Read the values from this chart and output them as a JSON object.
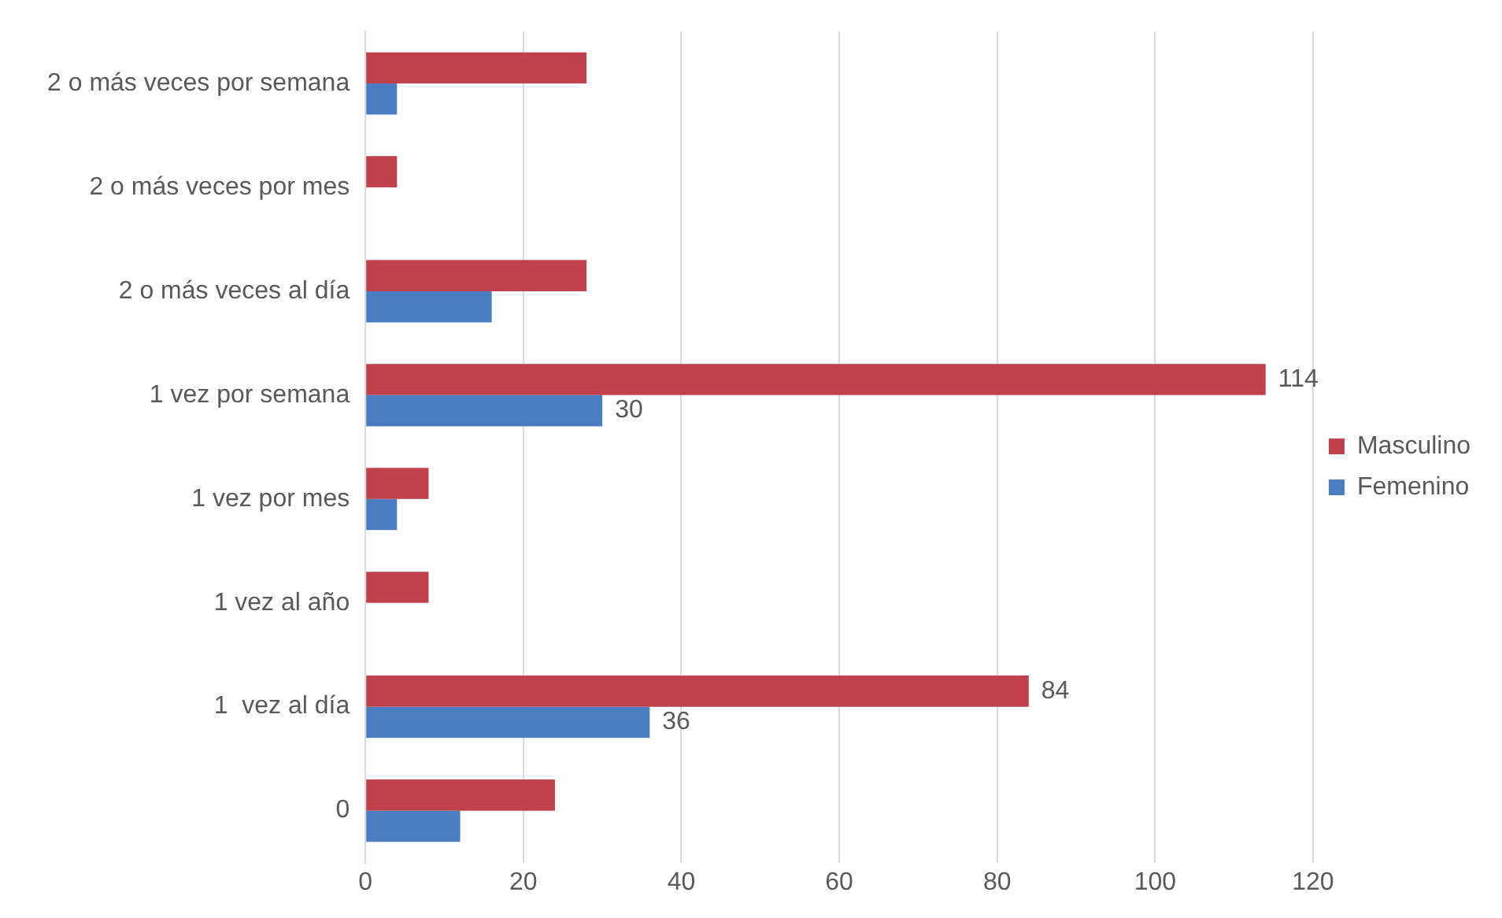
{
  "chart_data": {
    "type": "bar",
    "orientation": "horizontal",
    "categories": [
      "2 o más veces por semana",
      "2 o más veces por mes",
      "2 o más veces al día",
      "1 vez por semana",
      "1 vez por mes",
      "1 vez al año",
      "1  vez al día",
      "0"
    ],
    "series": [
      {
        "name": "Masculino",
        "color": "#c0414b",
        "values": [
          28,
          4,
          28,
          114,
          8,
          8,
          84,
          24
        ],
        "value_labels": [
          null,
          null,
          null,
          "114",
          null,
          null,
          "84",
          null
        ]
      },
      {
        "name": "Femenino",
        "color": "#4a7cc2",
        "values": [
          4,
          0,
          16,
          30,
          4,
          0,
          36,
          12
        ],
        "value_labels": [
          null,
          null,
          null,
          "30",
          null,
          null,
          "36",
          null
        ]
      }
    ],
    "xlim": [
      0,
      120
    ],
    "xticks": [
      0,
      20,
      40,
      60,
      80,
      100,
      120
    ],
    "grid": "x",
    "legend": "right"
  }
}
